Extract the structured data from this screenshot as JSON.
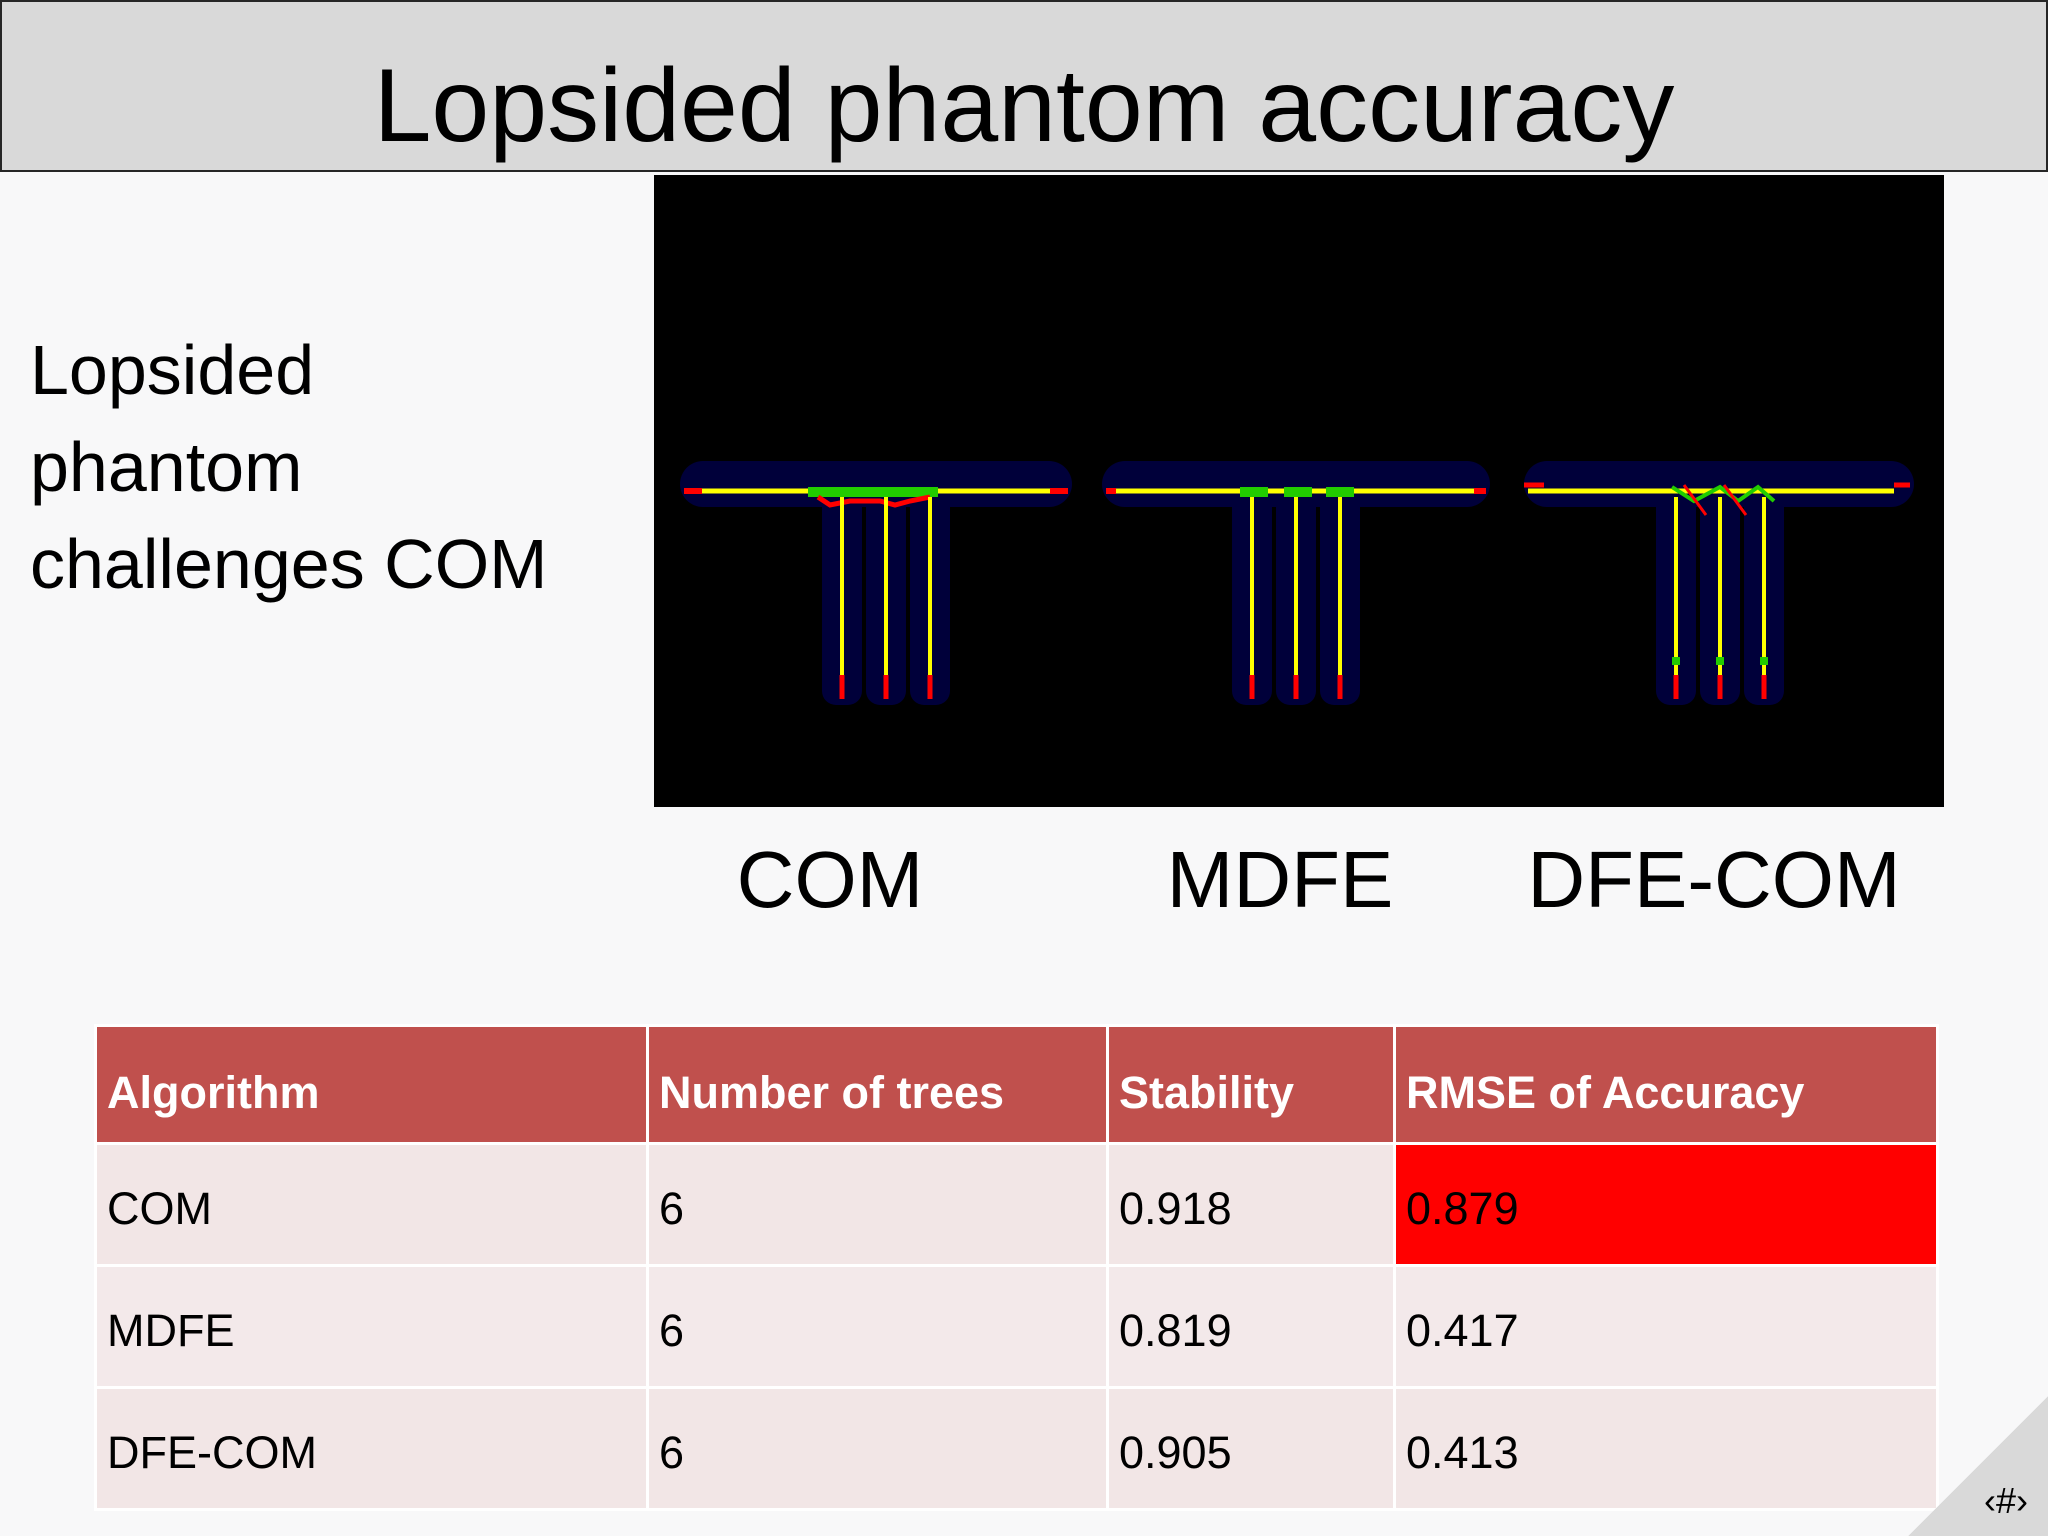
{
  "slide": {
    "title": "Lopsided phantom accuracy",
    "side_text_lines": [
      "Lopsided",
      "phantom",
      "challenges COM"
    ],
    "slide_number": "‹#›"
  },
  "phantom_panels": [
    {
      "label": "COM"
    },
    {
      "label": "MDFE"
    },
    {
      "label": "DFE-COM"
    }
  ],
  "colors": {
    "header_bar": "#d9d9d9",
    "table_header": "#c0504d",
    "row_odd": "#f2e6e6",
    "row_even": "#f3e9ea",
    "highlight": "#ff0000",
    "trace_yellow": "#ffff00",
    "trace_red": "#ff0000",
    "trace_green": "#22cc00",
    "phantom_background": "#000000",
    "phantom_body": "#00003a"
  },
  "table": {
    "headers": [
      "Algorithm",
      "Number of trees",
      "Stability",
      "RMSE of Accuracy"
    ],
    "rows": [
      {
        "algorithm": "COM",
        "trees": "6",
        "stability": "0.918",
        "rmse": "0.879"
      },
      {
        "algorithm": "MDFE",
        "trees": "6",
        "stability": "0.819",
        "rmse": "0.417"
      },
      {
        "algorithm": "DFE-COM",
        "trees": "6",
        "stability": "0.905",
        "rmse": "0.413"
      }
    ]
  }
}
